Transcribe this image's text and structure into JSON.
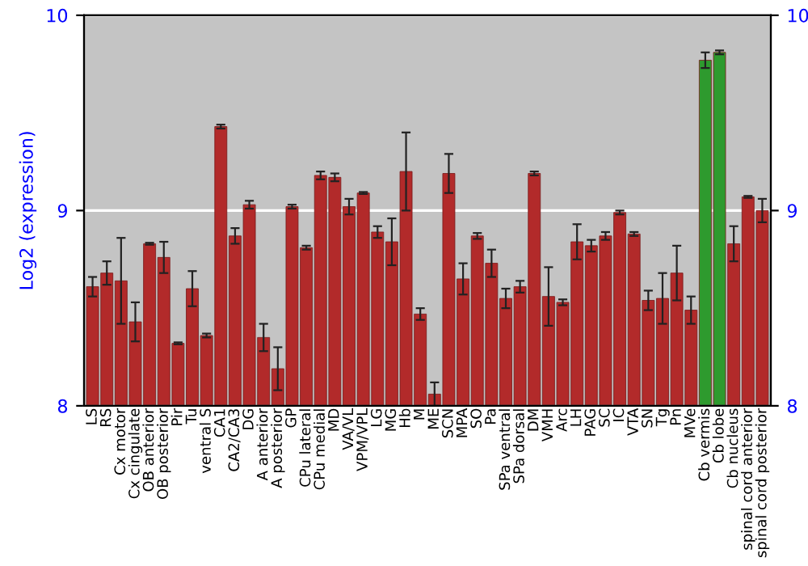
{
  "chart_data": {
    "type": "bar",
    "ylabel": "Log2 (expression)",
    "categories": [
      "LS",
      "RS",
      "Cx motor",
      "Cx cingulate",
      "OB anterior",
      "OB posterior",
      "Pir",
      "Tu",
      "ventral S",
      "CA1",
      "CA2/CA3",
      "DG",
      "A anterior",
      "A posterior",
      "GP",
      "CPu lateral",
      "CPu medial",
      "MD",
      "VA/VL",
      "VPM/VPL",
      "LG",
      "MG",
      "Hb",
      "M",
      "ME",
      "SCN",
      "MPA",
      "SO",
      "Pa",
      "SPa ventral",
      "SPa dorsal",
      "DM",
      "VMH",
      "Arc",
      "LH",
      "PAG",
      "SC",
      "IC",
      "VTA",
      "SN",
      "Tg",
      "Pn",
      "MVe",
      "Cb vermis",
      "Cb lobe",
      "Cb nucleus",
      "spinal cord anterior",
      "spinal cord posterior"
    ],
    "values": [
      8.61,
      8.68,
      8.64,
      8.43,
      8.83,
      8.76,
      8.32,
      8.6,
      8.36,
      9.43,
      8.87,
      9.03,
      8.35,
      8.19,
      9.02,
      8.81,
      9.18,
      9.17,
      9.02,
      9.09,
      8.89,
      8.84,
      9.2,
      8.47,
      8.06,
      9.19,
      8.65,
      8.87,
      8.73,
      8.55,
      8.61,
      9.19,
      8.56,
      8.53,
      8.84,
      8.82,
      8.87,
      8.99,
      8.88,
      8.54,
      8.55,
      8.68,
      8.49,
      9.77,
      9.81,
      8.83,
      9.07,
      9.0
    ],
    "errors": [
      0.05,
      0.06,
      0.22,
      0.1,
      0.005,
      0.08,
      0.005,
      0.09,
      0.01,
      0.01,
      0.04,
      0.02,
      0.07,
      0.11,
      0.01,
      0.01,
      0.02,
      0.02,
      0.04,
      0.005,
      0.03,
      0.12,
      0.2,
      0.03,
      0.06,
      0.1,
      0.08,
      0.015,
      0.07,
      0.05,
      0.03,
      0.01,
      0.15,
      0.015,
      0.09,
      0.03,
      0.02,
      0.01,
      0.01,
      0.05,
      0.13,
      0.14,
      0.07,
      0.04,
      0.01,
      0.09,
      0.005,
      0.06
    ],
    "colors": [
      "#b22a2a",
      "#b22a2a",
      "#b22a2a",
      "#b22a2a",
      "#b22a2a",
      "#b22a2a",
      "#b22a2a",
      "#b22a2a",
      "#b22a2a",
      "#b22a2a",
      "#b22a2a",
      "#b22a2a",
      "#b22a2a",
      "#b22a2a",
      "#b22a2a",
      "#b22a2a",
      "#b22a2a",
      "#b22a2a",
      "#b22a2a",
      "#b22a2a",
      "#b22a2a",
      "#b22a2a",
      "#b22a2a",
      "#b22a2a",
      "#b22a2a",
      "#b22a2a",
      "#b22a2a",
      "#b22a2a",
      "#b22a2a",
      "#b22a2a",
      "#b22a2a",
      "#b22a2a",
      "#b22a2a",
      "#b22a2a",
      "#b22a2a",
      "#b22a2a",
      "#b22a2a",
      "#b22a2a",
      "#b22a2a",
      "#b22a2a",
      "#b22a2a",
      "#b22a2a",
      "#b22a2a",
      "#2e9a2e",
      "#2e9a2e",
      "#b22a2a",
      "#b22a2a",
      "#b22a2a"
    ],
    "ylim": [
      8,
      10
    ],
    "yticks": [
      8,
      9,
      10
    ],
    "y2lim": [
      8,
      10
    ],
    "y2ticks": [
      8,
      9,
      10
    ],
    "grid": "y"
  }
}
